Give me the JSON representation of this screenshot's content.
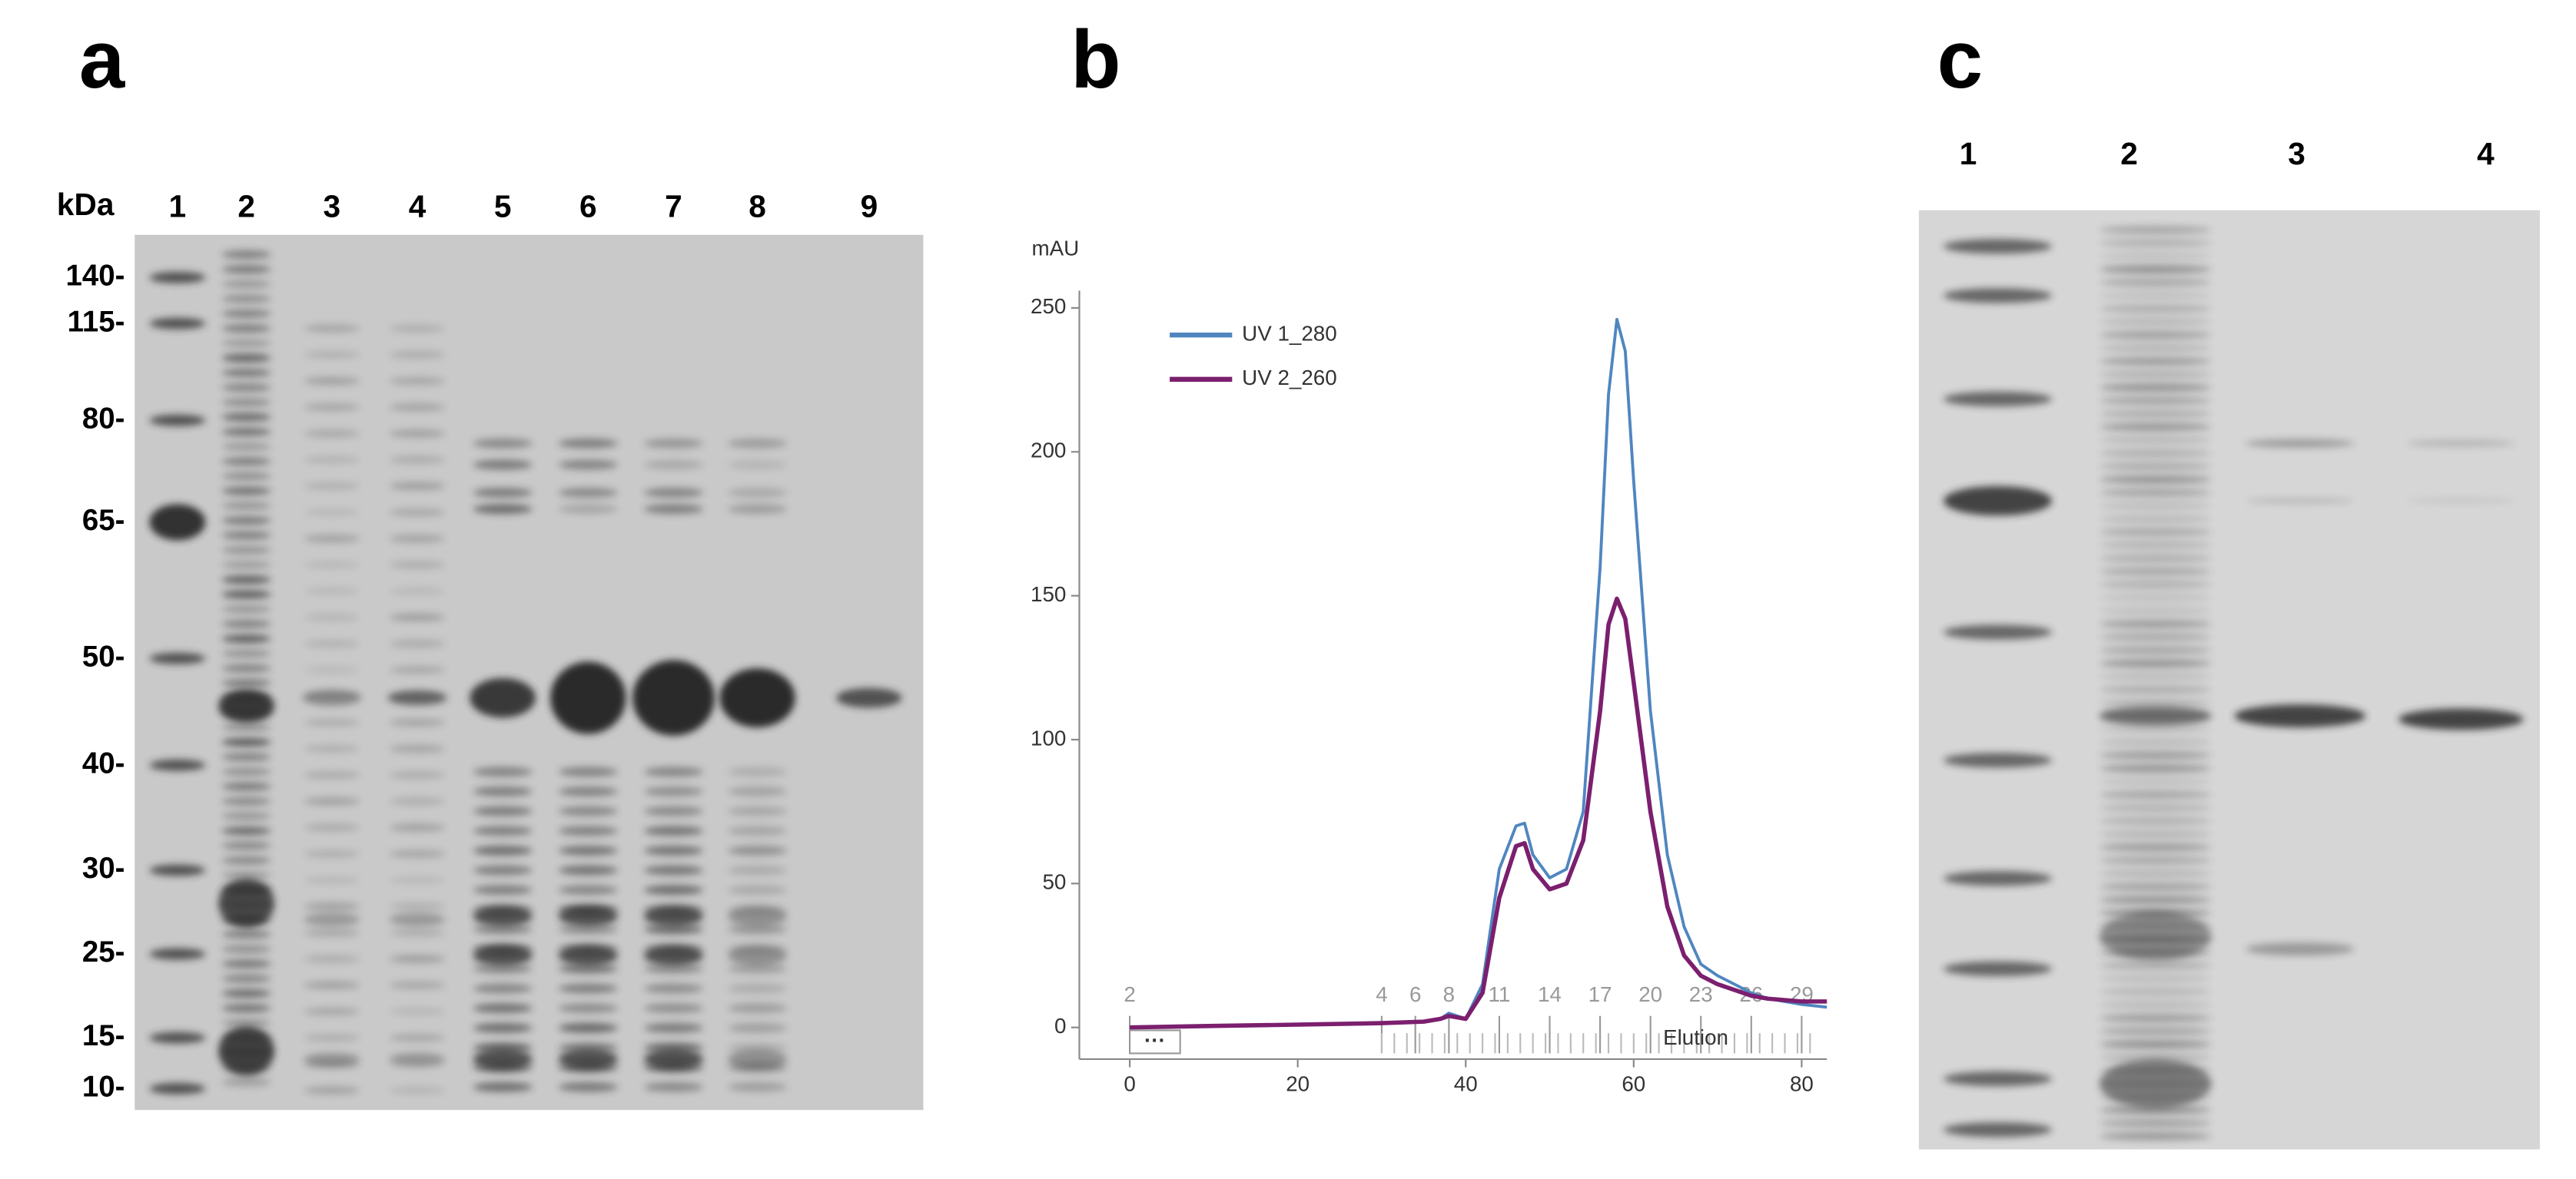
{
  "panels": [
    {
      "letter": "a",
      "axis_label": "kDa",
      "lanes": [
        "1",
        "2",
        "3",
        "4",
        "5",
        "6",
        "7",
        "8",
        "9"
      ],
      "markers": [
        "140-",
        "115-",
        "80-",
        "65-",
        "50-",
        "40-",
        "30-",
        "25-",
        "15-",
        "10-"
      ]
    },
    {
      "letter": "b",
      "chart_data": {
        "type": "line",
        "y_label": "mAU",
        "x": [
          0,
          10,
          20,
          30,
          35,
          37,
          38,
          40,
          42,
          44,
          46,
          47,
          48,
          50,
          52,
          54,
          56,
          57,
          58,
          59,
          60,
          62,
          64,
          66,
          68,
          70,
          72,
          74,
          76,
          80,
          83
        ],
        "series": [
          {
            "name": "UV 1_280",
            "color": "#4f86c0",
            "values": [
              0,
              0.5,
              1,
              1.5,
              2,
              3,
              5,
              3,
              15,
              55,
              70,
              71,
              60,
              52,
              55,
              75,
              160,
              220,
              246,
              235,
              190,
              110,
              60,
              35,
              22,
              18,
              15,
              12,
              10,
              8,
              7
            ]
          },
          {
            "name": "UV 2_260",
            "color": "#7b1f6e",
            "values": [
              0,
              0.5,
              1,
              1.5,
              2,
              3,
              4,
              3,
              12,
              45,
              63,
              64,
              55,
              48,
              50,
              65,
              110,
              140,
              149,
              142,
              120,
              75,
              42,
              25,
              18,
              15,
              13,
              11,
              10,
              9,
              9
            ]
          }
        ],
        "xlim": [
          -6,
          83
        ],
        "ylim": [
          -11,
          256
        ],
        "xticks": [
          0,
          20,
          40,
          60,
          80
        ],
        "yticks": [
          0,
          50,
          100,
          150,
          200,
          250
        ],
        "fraction_labels": [
          "2",
          "4",
          "6",
          "8",
          "11",
          "14",
          "17",
          "20",
          "23",
          "26",
          "29"
        ],
        "fraction_x": [
          0,
          30,
          34,
          38,
          44,
          50,
          56,
          62,
          68,
          74,
          80
        ],
        "annotations": [
          "Elution",
          "···"
        ],
        "legend": "upper-left"
      }
    },
    {
      "letter": "c",
      "lanes": [
        "1",
        "2",
        "3",
        "4"
      ]
    }
  ]
}
